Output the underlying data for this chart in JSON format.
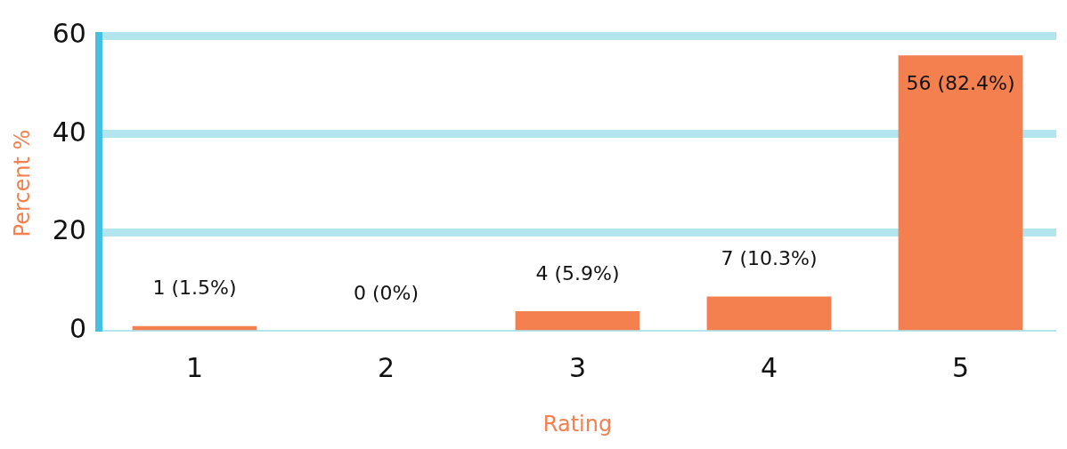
{
  "chart_data": {
    "type": "bar",
    "xlabel": "Rating",
    "ylabel": "Percent %",
    "categories": [
      "1",
      "2",
      "3",
      "4",
      "5"
    ],
    "values": [
      1,
      0,
      4,
      7,
      56
    ],
    "value_labels": [
      "1 (1.5%)",
      "0 (0%)",
      "4 (5.9%)",
      "7 (10.3%)",
      "56 (82.4%)"
    ],
    "color": "#f4804f",
    "ylim": [
      0,
      60
    ],
    "yticks": [
      0,
      20,
      40,
      60
    ],
    "grid": "y",
    "legend": false
  }
}
